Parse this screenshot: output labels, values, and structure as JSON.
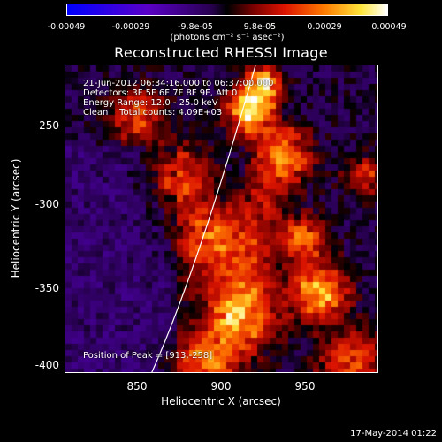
{
  "colorbar": {
    "ticks": [
      "-0.00049",
      "-0.00029",
      "-9.8e-05",
      "9.8e-05",
      "0.00029",
      "0.00049"
    ],
    "units": "(photons cm⁻² s⁻¹ asec⁻²)"
  },
  "title": "Reconstructed RHESSI Image",
  "info": {
    "time": "21-Jun-2012 06:34:16.000 to 06:37:00.000",
    "detectors": "Detectors: 3F 5F 6F 7F 8F 9F, Att 0",
    "energy": "Energy Range: 12.0 - 25.0 keV",
    "clean": "Clean    Total counts: 4.09E+03",
    "peak": "Position of Peak = [913,-258]"
  },
  "axes": {
    "xlabel": "Heliocentric X (arcsec)",
    "ylabel": "Heliocentric Y (arcsec)",
    "xticks": [
      "850",
      "900",
      "950"
    ],
    "yticks": [
      "-250",
      "-300",
      "-350",
      "-400"
    ]
  },
  "footer": "17-May-2014 01:22"
}
